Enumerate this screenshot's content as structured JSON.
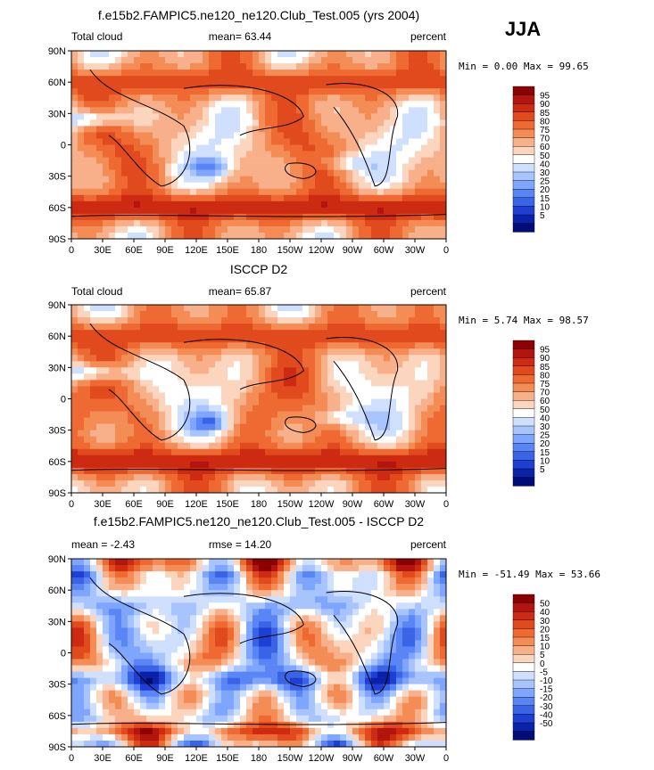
{
  "season_label": "JJA",
  "chart_data": [
    {
      "type": "heatmap",
      "title": "f.e15b2.FAMPIC5.ne120_ne120.Club_Test.005 (yrs 2004)",
      "left_label": "Total cloud",
      "center_label": "mean=  63.44",
      "right_label": "percent",
      "stats": "Min =   0.00 Max =  99.65",
      "x_ticks": [
        "0",
        "30E",
        "60E",
        "90E",
        "120E",
        "150E",
        "180",
        "150W",
        "120W",
        "90W",
        "60W",
        "30W",
        "0"
      ],
      "y_ticks": [
        "90N",
        "60N",
        "30N",
        "0",
        "30S",
        "60S",
        "90S"
      ],
      "xlim": [
        0,
        360
      ],
      "ylim": [
        -90,
        90
      ],
      "colorbar_levels": [
        "95",
        "90",
        "85",
        "80",
        "75",
        "70",
        "60",
        "50",
        "40",
        "30",
        "25",
        "20",
        "15",
        "10",
        "5"
      ],
      "colorbar_colors": [
        "#8b0000",
        "#b2140f",
        "#cd2a12",
        "#e04a1d",
        "#ee6a32",
        "#f48c55",
        "#f8b08a",
        "#fbd5bd",
        "#ffffff",
        "#cfe0ff",
        "#a8c4ff",
        "#7fa6ff",
        "#5a86f5",
        "#3a64e6",
        "#1e3fd2",
        "#0a22a8",
        "#000c78"
      ],
      "dataset": "model"
    },
    {
      "type": "heatmap",
      "title": "ISCCP D2",
      "left_label": "Total cloud",
      "center_label": "mean=  65.87",
      "right_label": "percent",
      "stats": "Min =   5.74 Max =  98.57",
      "x_ticks": [
        "0",
        "30E",
        "60E",
        "90E",
        "120E",
        "150E",
        "180",
        "150W",
        "120W",
        "90W",
        "60W",
        "30W",
        "0"
      ],
      "y_ticks": [
        "90N",
        "60N",
        "30N",
        "0",
        "30S",
        "60S",
        "90S"
      ],
      "xlim": [
        0,
        360
      ],
      "ylim": [
        -90,
        90
      ],
      "colorbar_levels": [
        "95",
        "90",
        "85",
        "80",
        "75",
        "70",
        "60",
        "50",
        "40",
        "30",
        "25",
        "20",
        "15",
        "10",
        "5"
      ],
      "colorbar_colors": [
        "#8b0000",
        "#b2140f",
        "#cd2a12",
        "#e04a1d",
        "#ee6a32",
        "#f48c55",
        "#f8b08a",
        "#fbd5bd",
        "#ffffff",
        "#cfe0ff",
        "#a8c4ff",
        "#7fa6ff",
        "#5a86f5",
        "#3a64e6",
        "#1e3fd2",
        "#0a22a8",
        "#000c78"
      ],
      "dataset": "obs"
    },
    {
      "type": "heatmap",
      "title": "f.e15b2.FAMPIC5.ne120_ne120.Club_Test.005 - ISCCP D2",
      "left_label": "mean =  -2.43",
      "center_label": "rmse =  14.20",
      "right_label": "percent",
      "stats": "Min = -51.49 Max =  53.66",
      "x_ticks": [
        "0",
        "30E",
        "60E",
        "90E",
        "120E",
        "150E",
        "180",
        "150W",
        "120W",
        "90W",
        "60W",
        "30W",
        "0"
      ],
      "y_ticks": [
        "90N",
        "60N",
        "30N",
        "0",
        "30S",
        "60S",
        "90S"
      ],
      "xlim": [
        0,
        360
      ],
      "ylim": [
        -90,
        90
      ],
      "colorbar_levels": [
        "50",
        "40",
        "30",
        "20",
        "15",
        "10",
        "5",
        "0",
        "-5",
        "-10",
        "-15",
        "-20",
        "-30",
        "-40",
        "-50"
      ],
      "colorbar_colors": [
        "#8b0000",
        "#b2140f",
        "#cd2a12",
        "#e04a1d",
        "#ee6a32",
        "#f48c55",
        "#f8b08a",
        "#fbd5bd",
        "#ffffff",
        "#cfe0ff",
        "#a8c4ff",
        "#7fa6ff",
        "#5a86f5",
        "#3a64e6",
        "#1e3fd2",
        "#0a22a8",
        "#000c78"
      ],
      "dataset": "diff"
    }
  ]
}
